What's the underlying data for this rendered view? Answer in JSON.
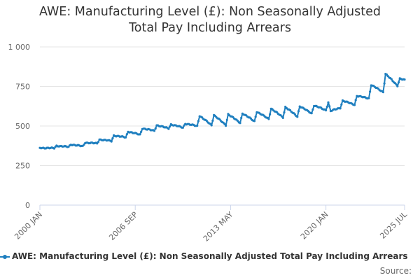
{
  "chart_data": {
    "type": "line",
    "title_lines": [
      "AWE: Manufacturing Level (£): Non Seasonally Adjusted",
      "Total Pay Including Arrears"
    ],
    "xlabel": "",
    "ylabel": "",
    "ylim": [
      0,
      1000
    ],
    "y_ticks": [
      0,
      250,
      500,
      750,
      1000
    ],
    "y_tick_labels": [
      "0",
      "250",
      "500",
      "750",
      "1 000"
    ],
    "x_range": [
      "2000-01",
      "2025-07"
    ],
    "x_ticks": [
      "2000-01",
      "2006-09",
      "2013-05",
      "2020-01",
      "2025-07"
    ],
    "x_tick_labels": [
      "2000 JAN",
      "2006 SEP",
      "2013 MAY",
      "2020 JAN",
      "2025 JUL"
    ],
    "grid": "horizontal",
    "legend_position": "bottom",
    "series_color": "#1f7fbf",
    "series": [
      {
        "name": "AWE: Manufacturing Level (£): Non Seasonally Adjusted Total Pay Including Arrears",
        "x": [
          "2000-01",
          "2001-01",
          "2001-03",
          "2002-01",
          "2002-03",
          "2003-01",
          "2003-03",
          "2004-01",
          "2004-03",
          "2005-01",
          "2005-03",
          "2006-01",
          "2006-03",
          "2007-01",
          "2007-03",
          "2008-01",
          "2008-03",
          "2009-01",
          "2009-03",
          "2010-01",
          "2010-03",
          "2011-01",
          "2011-03",
          "2012-01",
          "2012-03",
          "2013-01",
          "2013-03",
          "2014-01",
          "2014-03",
          "2015-01",
          "2015-03",
          "2016-01",
          "2016-03",
          "2017-01",
          "2017-03",
          "2018-01",
          "2018-03",
          "2019-01",
          "2019-03",
          "2020-01",
          "2020-03",
          "2020-05",
          "2021-01",
          "2021-03",
          "2022-01",
          "2022-03",
          "2023-01",
          "2023-03",
          "2024-01",
          "2024-03",
          "2025-01",
          "2025-03",
          "2025-07"
        ],
        "values": [
          362,
          360,
          375,
          368,
          383,
          372,
          395,
          390,
          415,
          405,
          440,
          428,
          465,
          445,
          485,
          470,
          505,
          485,
          510,
          490,
          515,
          500,
          565,
          505,
          570,
          505,
          575,
          520,
          580,
          530,
          590,
          545,
          610,
          555,
          620,
          560,
          625,
          580,
          630,
          600,
          650,
          595,
          615,
          660,
          635,
          690,
          675,
          760,
          715,
          830,
          755,
          800,
          790
        ]
      }
    ]
  },
  "legend": {
    "label": "AWE: Manufacturing Level (£): Non Seasonally Adjusted Total Pay Including Arrears"
  },
  "source": {
    "label": "Source:"
  }
}
